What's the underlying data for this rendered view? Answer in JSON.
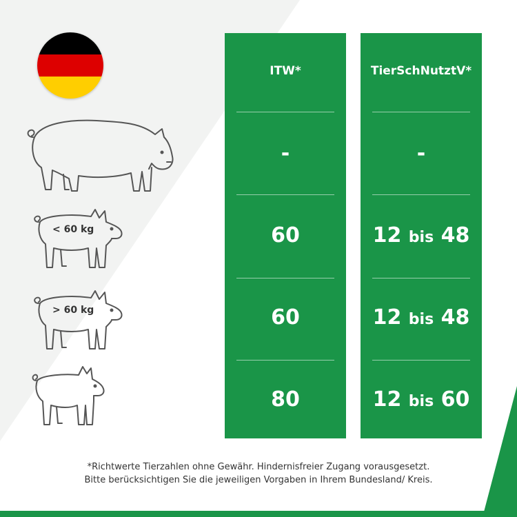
{
  "colors": {
    "accent": "#1a9548",
    "panel_bg": "#f2f3f2",
    "text": "#333333"
  },
  "flag": {
    "name": "germany-flag",
    "stripes": [
      "#000000",
      "#dd0000",
      "#ffce00"
    ]
  },
  "pigs": [
    {
      "icon": "adult-pig-icon",
      "label": ""
    },
    {
      "icon": "pig-icon",
      "label": "< 60 kg"
    },
    {
      "icon": "pig-icon",
      "label": "> 60 kg"
    },
    {
      "icon": "piglet-icon",
      "label": ""
    }
  ],
  "table": {
    "columns": [
      {
        "header": "ITW*",
        "values": [
          "-",
          "60",
          "60",
          "80"
        ]
      },
      {
        "header": "TierSchNutztV*",
        "values": [
          "-",
          "12 bis 48",
          "12 bis 48",
          "12 bis 60"
        ]
      }
    ]
  },
  "footnote": {
    "line1": "*Richtwerte Tierzahlen ohne Gewähr. Hindernisfreier Zugang vorausgesetzt.",
    "line2": "Bitte berücksichtigen Sie die jeweiligen Vorgaben in Ihrem Bundesland/ Kreis."
  }
}
